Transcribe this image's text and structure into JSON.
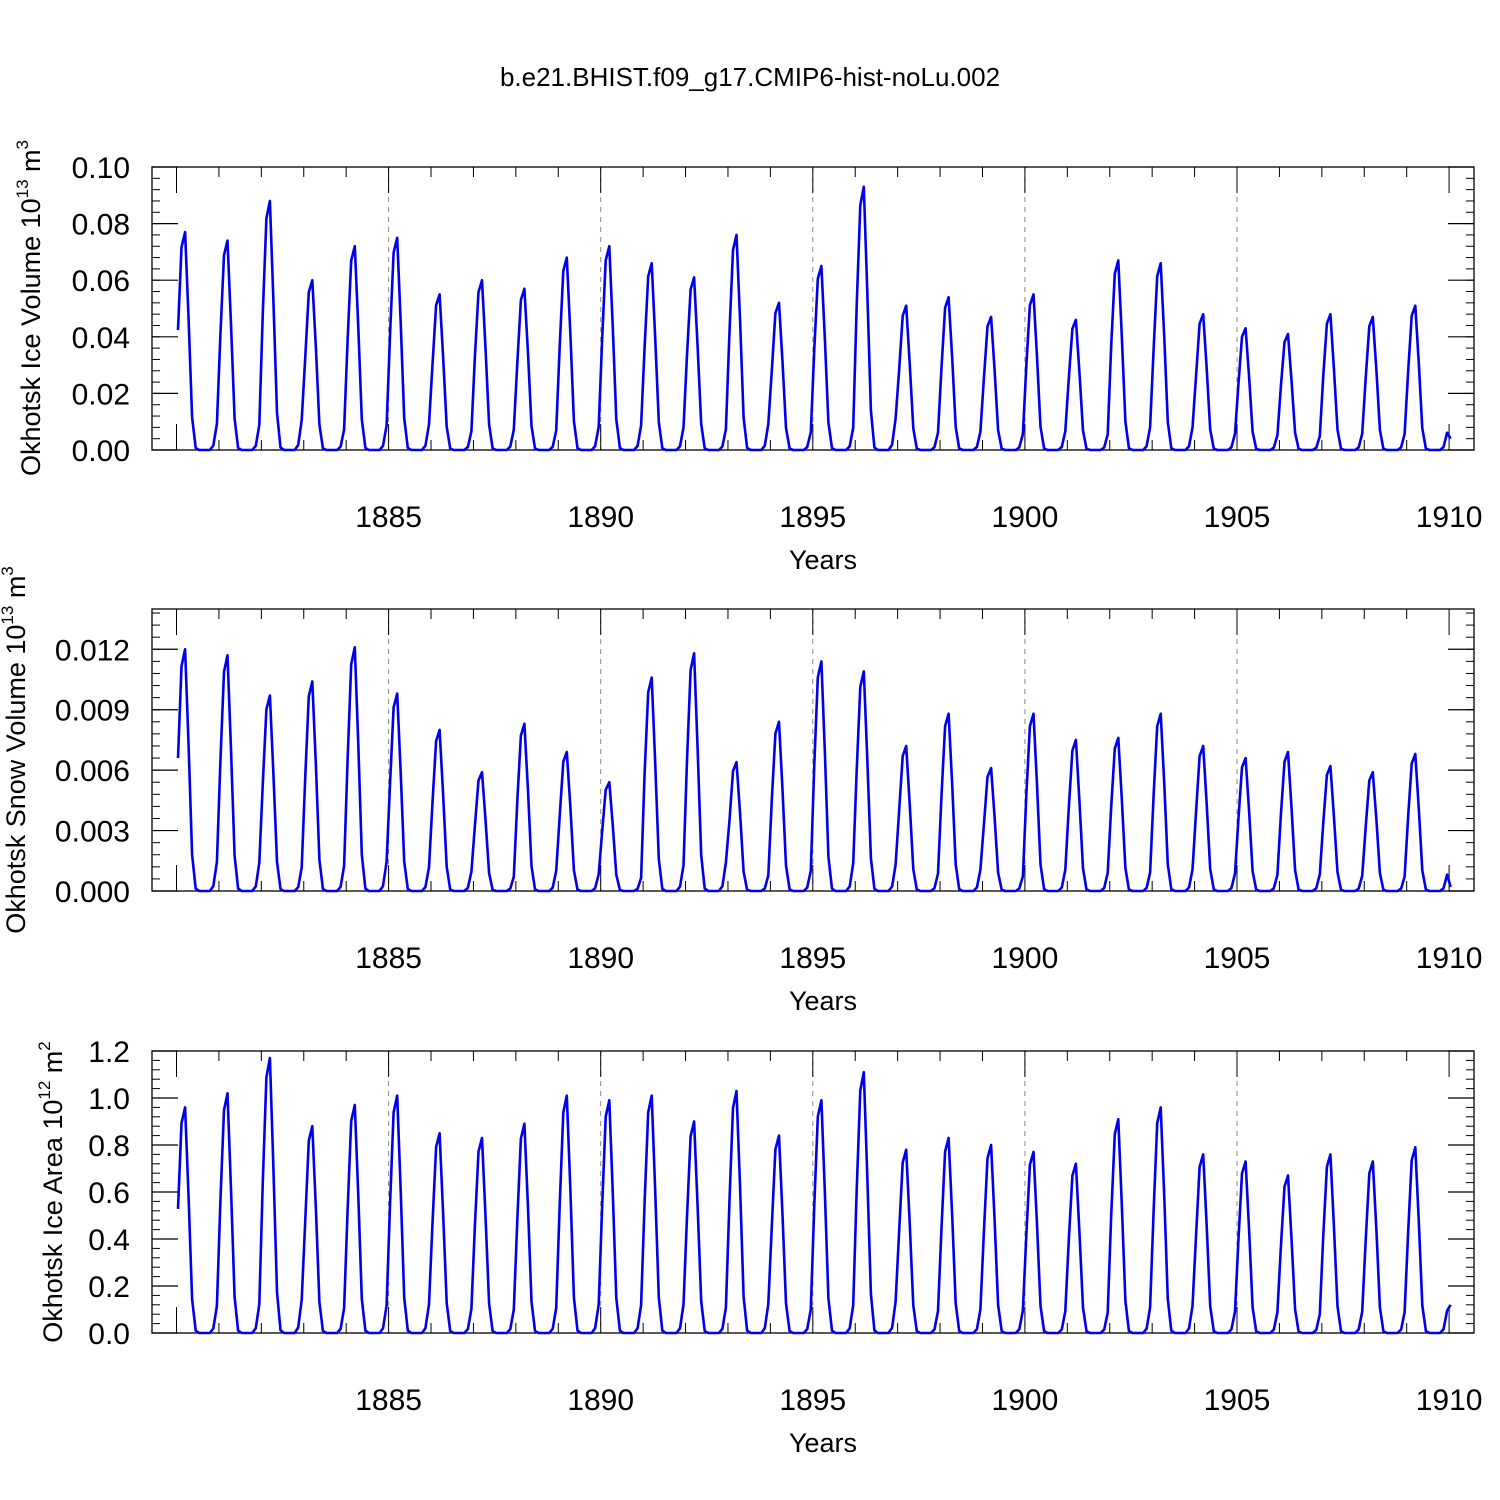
{
  "title": "b.e21.BHIST.f09_g17.CMIP6-hist-noLu.002",
  "colors": {
    "line": "#0000ee",
    "axis": "#000000",
    "grid": "#888888"
  },
  "chart_data": [
    {
      "type": "line",
      "ylabel": "Okhotsk Ice Volume",
      "ylabel_unit_base": "10",
      "ylabel_unit_exp": "13",
      "ylabel_unit_tail": "m",
      "ylabel_unit_tail_exp": "3",
      "xlabel": "Years",
      "xlim": [
        1880.0,
        1910.0
      ],
      "ylim": [
        0,
        0.1
      ],
      "yticks": [
        0.0,
        0.02,
        0.04,
        0.06,
        0.08,
        0.1
      ],
      "yticklabels": [
        "0.00",
        "0.02",
        "0.04",
        "0.06",
        "0.08",
        "0.10"
      ],
      "xticks": [
        1885,
        1890,
        1895,
        1900,
        1905,
        1910
      ],
      "xticklabels": [
        "1885",
        "1890",
        "1895",
        "1900",
        "1905",
        "1910"
      ],
      "grid_years": [
        1885,
        1890,
        1895,
        1900,
        1905
      ],
      "peaks": [
        0.077,
        0.074,
        0.088,
        0.06,
        0.072,
        0.075,
        0.055,
        0.06,
        0.057,
        0.068,
        0.072,
        0.066,
        0.061,
        0.076,
        0.052,
        0.065,
        0.093,
        0.051,
        0.054,
        0.047,
        0.055,
        0.046,
        0.067,
        0.066,
        0.048,
        0.043,
        0.041,
        0.048,
        0.047,
        0.051
      ],
      "end_value": 0.004
    },
    {
      "type": "line",
      "ylabel": "Okhotsk Snow Volume",
      "ylabel_unit_base": "10",
      "ylabel_unit_exp": "13",
      "ylabel_unit_tail": "m",
      "ylabel_unit_tail_exp": "3",
      "xlabel": "Years",
      "xlim": [
        1880.0,
        1910.0
      ],
      "ylim": [
        0,
        0.014
      ],
      "yticks": [
        0.0,
        0.003,
        0.006,
        0.009,
        0.012
      ],
      "yticklabels": [
        "0.000",
        "0.003",
        "0.006",
        "0.009",
        "0.012"
      ],
      "xticks": [
        1885,
        1890,
        1895,
        1900,
        1905,
        1910
      ],
      "xticklabels": [
        "1885",
        "1890",
        "1895",
        "1900",
        "1905",
        "1910"
      ],
      "grid_years": [
        1885,
        1890,
        1895,
        1900,
        1905
      ],
      "peaks": [
        0.012,
        0.0117,
        0.0097,
        0.0104,
        0.0121,
        0.0098,
        0.008,
        0.0059,
        0.0083,
        0.0069,
        0.0054,
        0.0106,
        0.0118,
        0.0064,
        0.0084,
        0.0114,
        0.0109,
        0.0072,
        0.0088,
        0.0061,
        0.0088,
        0.0075,
        0.0076,
        0.0088,
        0.0072,
        0.0066,
        0.0069,
        0.0062,
        0.0059,
        0.0068
      ],
      "end_value": 0.0002
    },
    {
      "type": "line",
      "ylabel": "Okhotsk Ice Area",
      "ylabel_unit_base": "10",
      "ylabel_unit_exp": "12",
      "ylabel_unit_tail": "m",
      "ylabel_unit_tail_exp": "2",
      "xlabel": "Years",
      "xlim": [
        1880.0,
        1910.0
      ],
      "ylim": [
        0,
        1.2
      ],
      "yticks": [
        0.0,
        0.2,
        0.4,
        0.6,
        0.8,
        1.0,
        1.2
      ],
      "yticklabels": [
        "0.0",
        "0.2",
        "0.4",
        "0.6",
        "0.8",
        "1.0",
        "1.2"
      ],
      "xticks": [
        1885,
        1890,
        1895,
        1900,
        1905,
        1910
      ],
      "xticklabels": [
        "1885",
        "1890",
        "1895",
        "1900",
        "1905",
        "1910"
      ],
      "grid_years": [
        1885,
        1890,
        1895,
        1900,
        1905
      ],
      "peaks": [
        0.96,
        1.02,
        1.17,
        0.88,
        0.97,
        1.01,
        0.85,
        0.83,
        0.89,
        1.01,
        0.99,
        1.01,
        0.9,
        1.03,
        0.84,
        0.99,
        1.11,
        0.78,
        0.83,
        0.8,
        0.77,
        0.72,
        0.91,
        0.96,
        0.76,
        0.73,
        0.67,
        0.76,
        0.73,
        0.79
      ],
      "end_value": 0.12
    }
  ]
}
